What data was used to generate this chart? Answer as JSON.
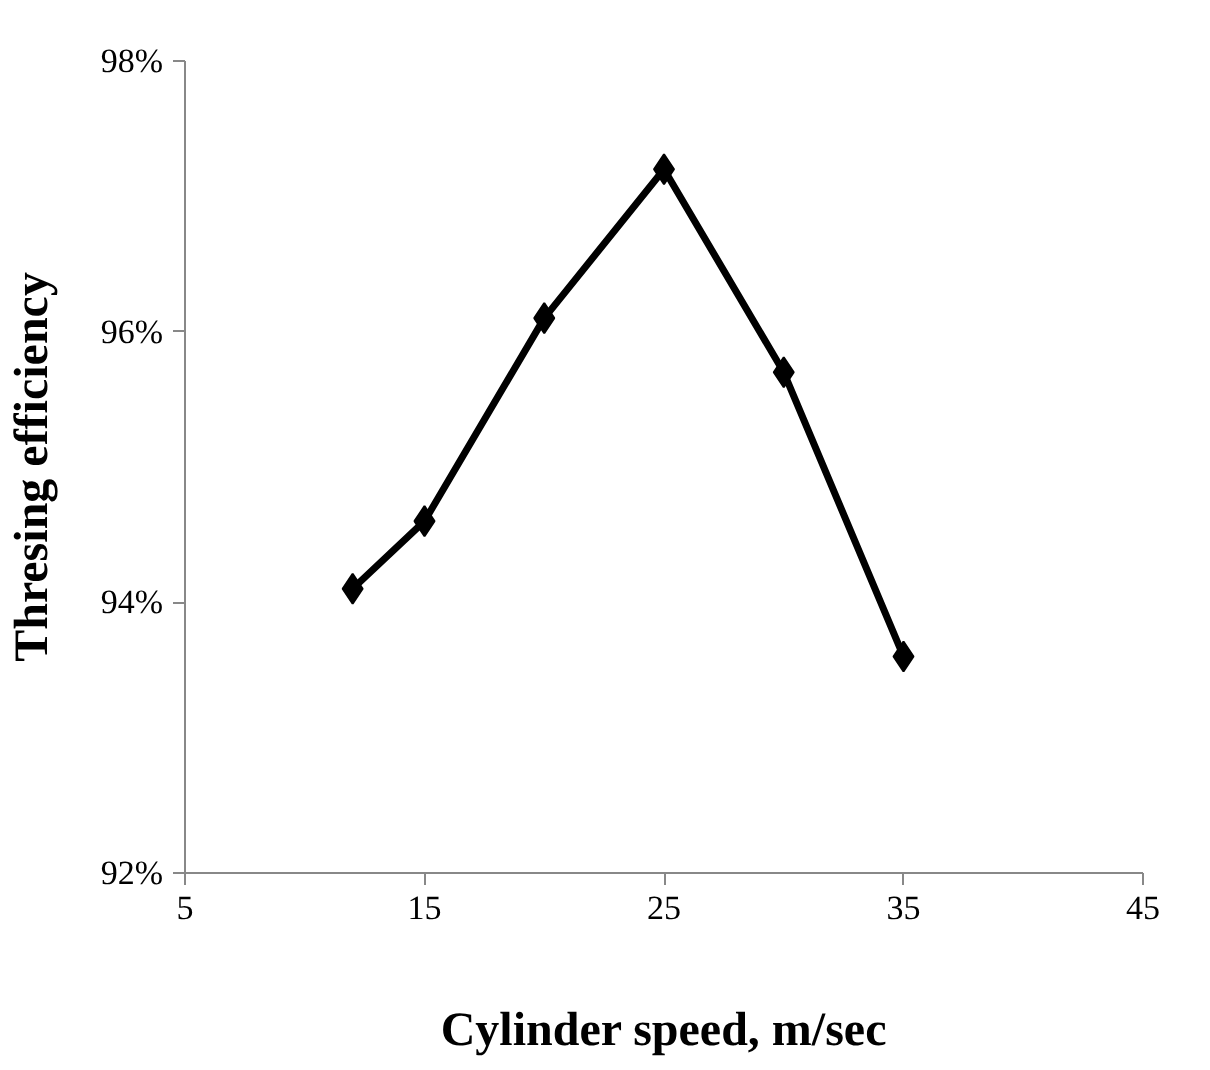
{
  "chart_data": {
    "type": "line",
    "xlabel": "Cylinder speed, m/sec",
    "ylabel": "Thresing efficiency",
    "x": [
      12,
      15,
      20,
      25,
      30,
      35
    ],
    "series": [
      {
        "color": "#000000",
        "values": [
          94.1,
          94.6,
          96.1,
          97.2,
          95.7,
          93.6
        ]
      }
    ],
    "xlim": [
      5,
      45
    ],
    "xticks": [
      5,
      15,
      25,
      35,
      45
    ],
    "ylim": [
      92,
      98
    ],
    "yticks": [
      {
        "value": 92,
        "label": "92%"
      },
      {
        "value": 94,
        "label": "94%"
      },
      {
        "value": 96,
        "label": "96%"
      },
      {
        "value": 98,
        "label": "98%"
      }
    ],
    "marker": "diamond",
    "line_style": "solid",
    "grid": false
  }
}
